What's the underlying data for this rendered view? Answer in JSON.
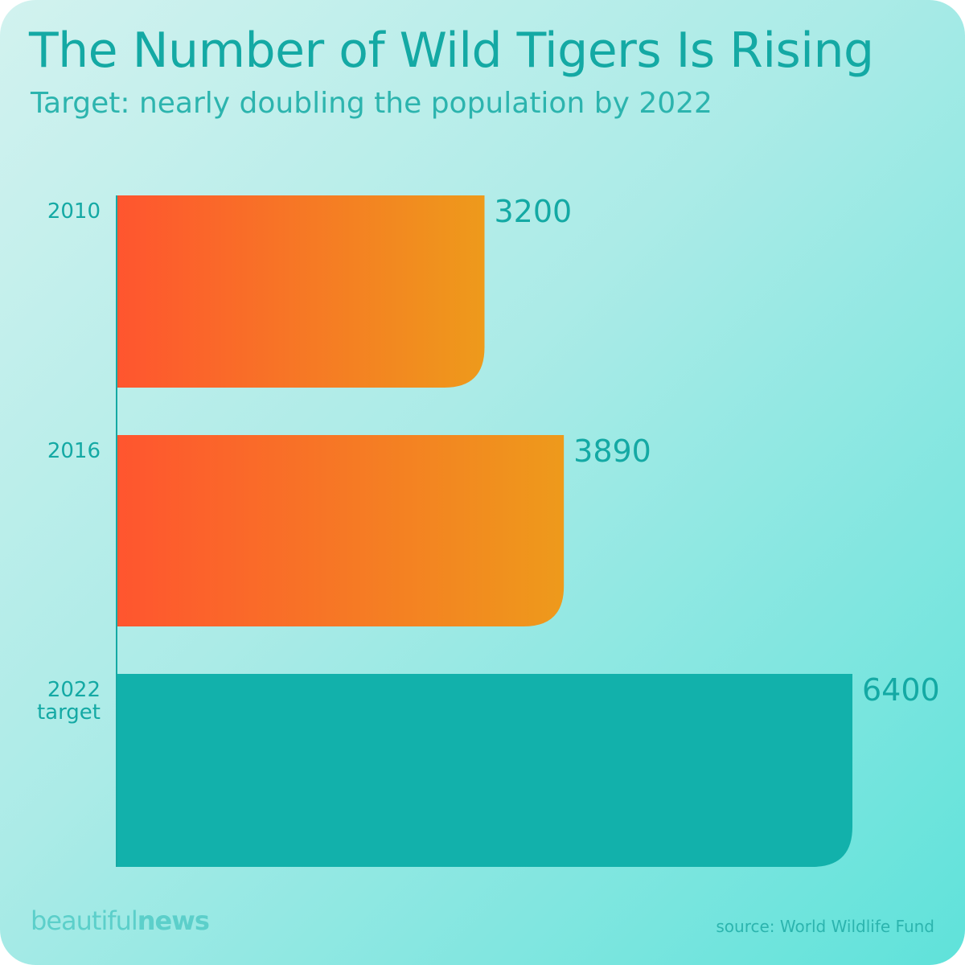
{
  "header": {
    "title": "The Number of Wild Tigers Is Rising",
    "subtitle": "Target: nearly doubling the population by 2022"
  },
  "footer": {
    "brand_light": "beautiful",
    "brand_bold": "news",
    "source": "source: World Wildlife Fund"
  },
  "colors": {
    "actual_start": "#ff552f",
    "actual_end": "#ee9a1b",
    "target": "#12b1ab",
    "text": "#14a9a4",
    "axis": "#14a9a4"
  },
  "chart_data": {
    "type": "bar",
    "orientation": "horizontal",
    "title": "The Number of Wild Tigers Is Rising",
    "subtitle": "Target: nearly doubling the population by 2022",
    "categories": [
      {
        "lines": [
          "2010"
        ],
        "value": 3200,
        "label": "3200",
        "kind": "actual"
      },
      {
        "lines": [
          "2016"
        ],
        "value": 3890,
        "label": "3890",
        "kind": "actual"
      },
      {
        "lines": [
          "2022",
          "target"
        ],
        "value": 6400,
        "label": "6400",
        "kind": "target"
      }
    ],
    "xlim": [
      0,
      6400
    ],
    "grid": false,
    "xlabel": "",
    "ylabel": ""
  }
}
